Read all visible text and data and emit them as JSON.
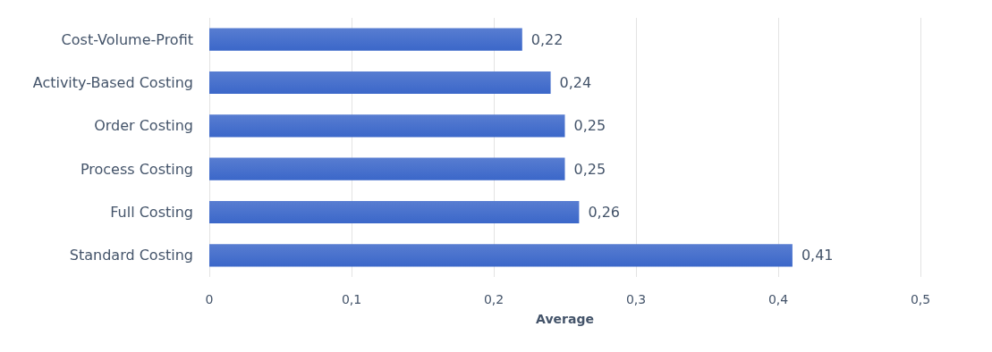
{
  "chart_data": {
    "type": "bar",
    "orientation": "horizontal",
    "categories": [
      "Cost-Volume-Profit",
      "Activity-Based Costing",
      "Order Costing",
      "Process Costing",
      "Full Costing",
      "Standard Costing"
    ],
    "values": [
      0.22,
      0.24,
      0.25,
      0.25,
      0.26,
      0.41
    ],
    "value_labels": [
      "0,22",
      "0,24",
      "0,25",
      "0,25",
      "0,26",
      "0,41"
    ],
    "color": "#3b67c9",
    "xlabel": "Average",
    "xlim": [
      0,
      0.5
    ],
    "xticks": [
      0,
      {
        "value": 0.1,
        "label": "0,1"
      },
      {
        "value": 0.2,
        "label": "0,2"
      },
      {
        "value": 0.3,
        "label": "0,3"
      },
      {
        "value": 0.4,
        "label": "0,4"
      },
      {
        "value": 0.5,
        "label": "0,5"
      }
    ],
    "grid": "x"
  }
}
